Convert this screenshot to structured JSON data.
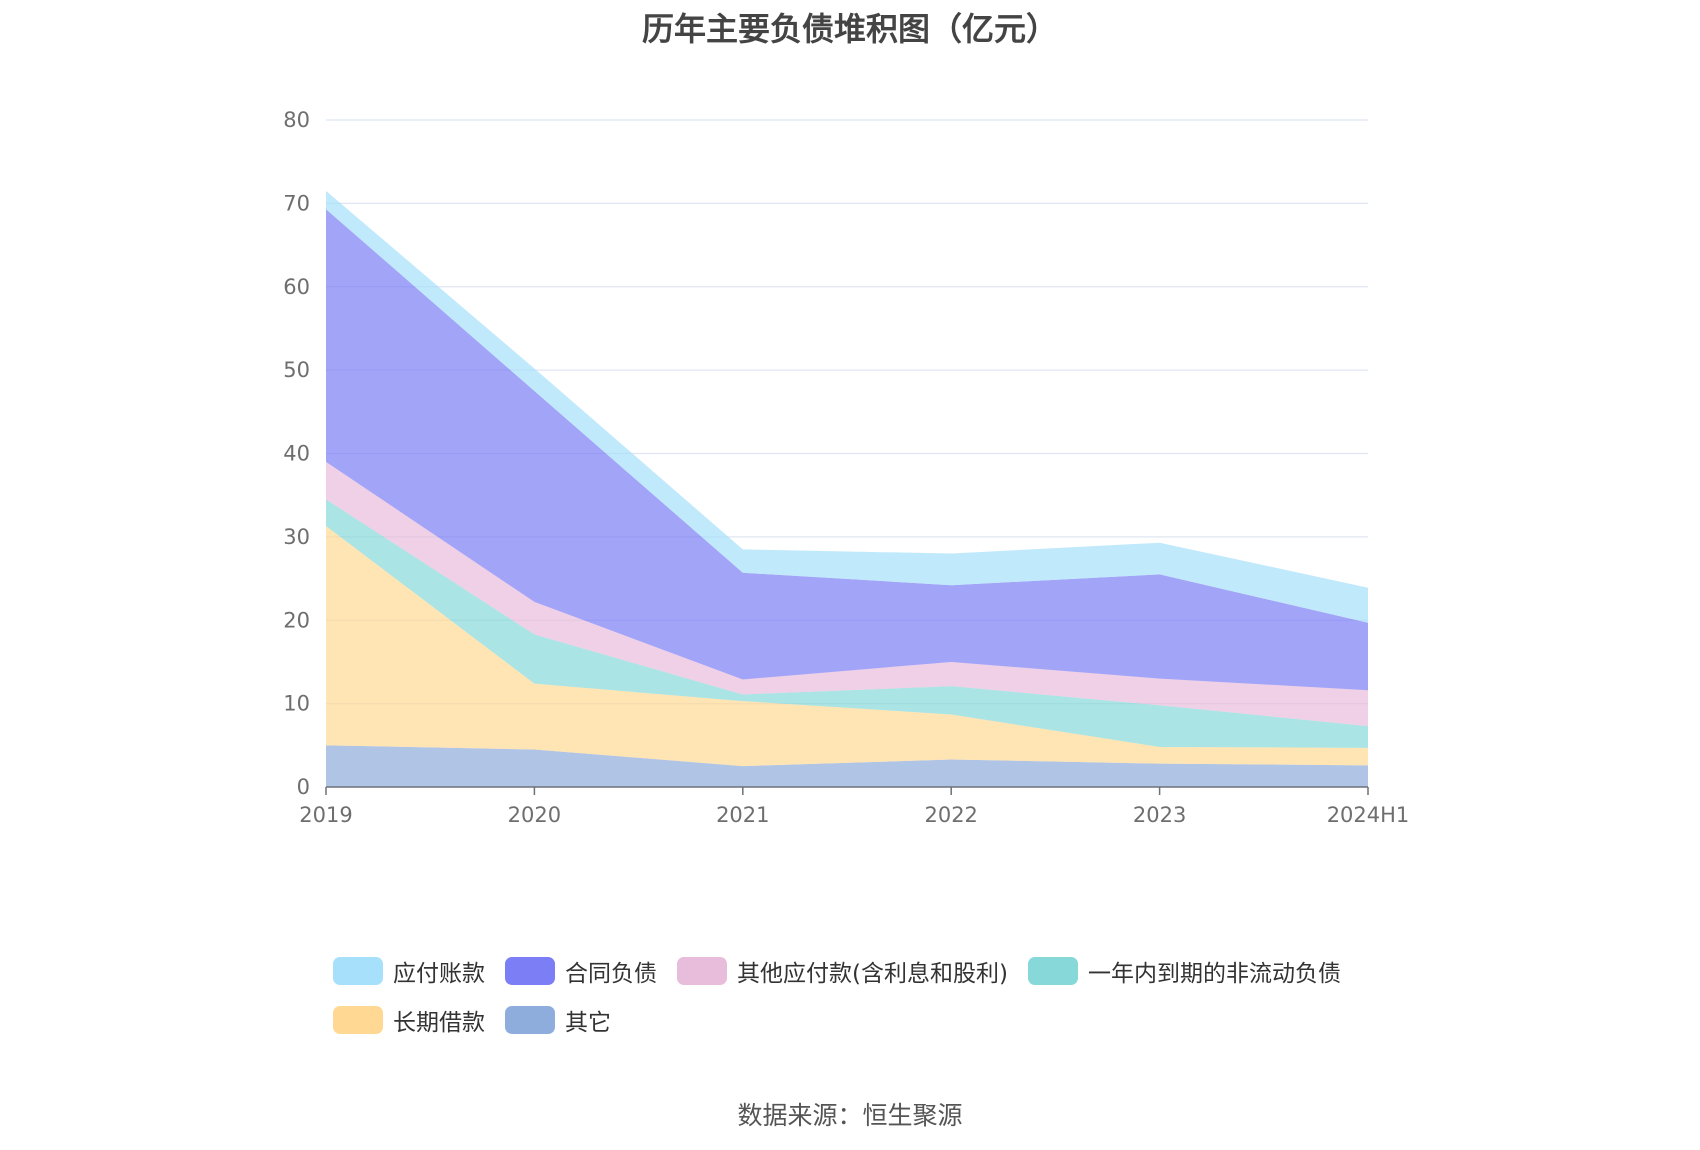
{
  "chart_data": {
    "type": "area",
    "stacked": true,
    "title": "历年主要负债堆积图（亿元）",
    "x": [
      "2019",
      "2020",
      "2021",
      "2022",
      "2023",
      "2024H1"
    ],
    "ylim": [
      0,
      80
    ],
    "yticks": [
      0,
      10,
      20,
      30,
      40,
      50,
      60,
      70,
      80
    ],
    "grid": true,
    "legend_position": "bottom",
    "series": [
      {
        "name": "其它",
        "color": "#8eaddc",
        "values": [
          5.0,
          4.5,
          2.5,
          3.3,
          2.8,
          2.6
        ]
      },
      {
        "name": "长期借款",
        "color": "#ffd994",
        "values": [
          26.3,
          7.9,
          7.8,
          5.4,
          2.0,
          2.1
        ]
      },
      {
        "name": "一年内到期的非流动负债",
        "color": "#86d8d9",
        "values": [
          3.2,
          5.9,
          0.8,
          3.4,
          5.0,
          2.6
        ]
      },
      {
        "name": "其他应付款(含利息和股利)",
        "color": "#e8bcdb",
        "values": [
          4.5,
          3.9,
          1.8,
          2.9,
          3.2,
          4.3
        ]
      },
      {
        "name": "合同负债",
        "color": "#7b7ef5",
        "values": [
          30.3,
          25.3,
          12.8,
          9.2,
          12.5,
          8.1
        ]
      },
      {
        "name": "应付账款",
        "color": "#a7e0fb",
        "values": [
          2.2,
          2.7,
          2.8,
          3.8,
          3.8,
          4.2
        ]
      }
    ]
  },
  "legend": {
    "row1": [
      "应付账款",
      "合同负债",
      "其他应付款(含利息和股利)",
      "一年内到期的非流动负债"
    ],
    "row2": [
      "长期借款",
      "其它"
    ]
  },
  "source": "数据来源：恒生聚源"
}
